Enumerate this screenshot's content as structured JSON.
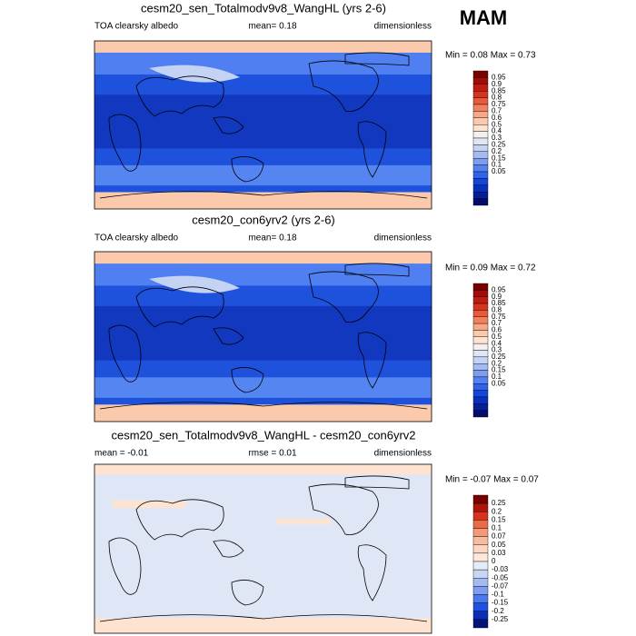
{
  "season": "MAM",
  "panels": [
    {
      "title": "cesm20_sen_Totalmodv9v8_WangHL (yrs 2-6)",
      "left": "TOA clearsky albedo",
      "center": "mean=  0.18",
      "right": "dimensionless",
      "minmax": "Min =  0.08 Max =  0.73",
      "colorbar": [
        "0.95",
        "0.9",
        "0.85",
        "0.8",
        "0.75",
        "0.7",
        "0.6",
        "0.5",
        "0.4",
        "0.3",
        "0.25",
        "0.2",
        "0.15",
        "0.1",
        "0.05"
      ]
    },
    {
      "title": "cesm20_con6yrv2 (yrs 2-6)",
      "left": "TOA clearsky albedo",
      "center": "mean=  0.18",
      "right": "dimensionless",
      "minmax": "Min =  0.09 Max =  0.72",
      "colorbar": [
        "0.95",
        "0.9",
        "0.85",
        "0.8",
        "0.75",
        "0.7",
        "0.6",
        "0.5",
        "0.4",
        "0.3",
        "0.25",
        "0.2",
        "0.15",
        "0.1",
        "0.05"
      ]
    },
    {
      "title": "cesm20_sen_Totalmodv9v8_WangHL - cesm20_con6yrv2",
      "left": "mean =  -0.01",
      "center": "rmse =  0.01",
      "right": "dimensionless",
      "minmax": "Min = -0.07 Max =  0.07",
      "colorbar": [
        "0.25",
        "0.2",
        "0.15",
        "0.1",
        "0.07",
        "0.05",
        "0.03",
        "0",
        "-0.03",
        "-0.05",
        "-0.07",
        "-0.1",
        "-0.15",
        "-0.2",
        "-0.25"
      ]
    }
  ]
}
